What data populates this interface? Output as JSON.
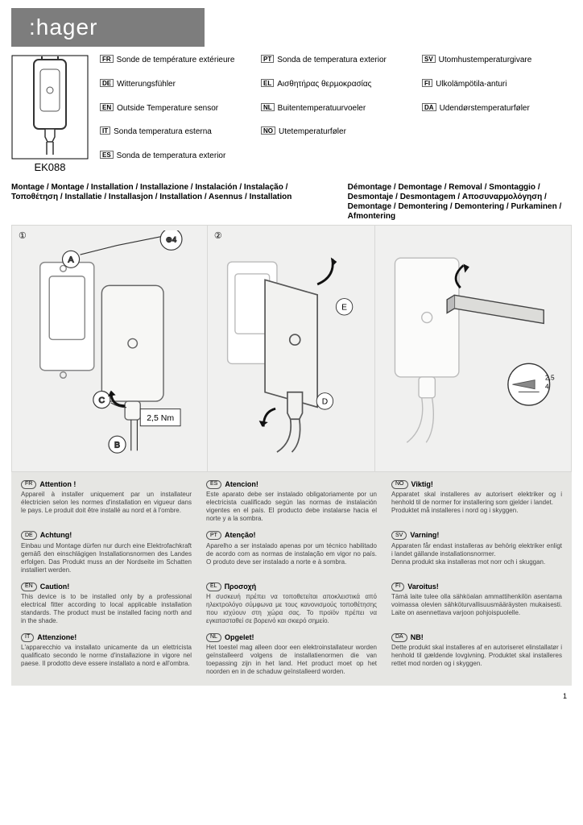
{
  "brand": ":hager",
  "product_code": "EK088",
  "product_names": {
    "fr": "Sonde de température extérieure",
    "de": "Witterungsfühler",
    "en": "Outside Temperature sensor",
    "it": "Sonda temperatura esterna",
    "es": "Sonda de temperatura exterior",
    "pt": "Sonda de temperatura exterior",
    "el": "Αισθητήρας θερµοκρασίας",
    "nl": "Buitentemperatuurvoeler",
    "no": "Utetemperaturføler",
    "sv": "Utomhustemperaturgivare",
    "fi": "Ulkolämpötila-anturi",
    "da": "Udendørstemperaturføler"
  },
  "sections": {
    "install_title_multi": "Montage / Montage / Installation / Installazione / Instalación / Instalação / Τοποθέτηση / Installatie / Installasjon / Installation / Asennus / Installation",
    "remove_title_multi": "Démontage / Demontage / Removal / Smontaggio / Desmontaje / Desmontagem / Αποσυναρµολόγηση / Demontage / Demontering / Demontering / Purkaminen / Afmontering"
  },
  "fig_labels": {
    "one": "①",
    "two": "②",
    "torque": "2,5 Nm",
    "screw_tip": "2,5\n4"
  },
  "warnings": [
    {
      "code": "FR",
      "title": "Attention !",
      "text": "Appareil à installer uniquement par un installateur électricien selon les normes d'installation en vigueur dans le pays. Le produit doit être installé au nord et à l'ombre."
    },
    {
      "code": "ES",
      "title": "Atencion!",
      "text": "Este aparato debe ser instalado obligatoriamente por un electricista cualificado según las normas de instalación vigentes en el país. El producto debe instalarse hacia el norte y a la sombra."
    },
    {
      "code": "NO",
      "title": "Viktig!",
      "text": "Apparatet skal installeres av autorisert elektriker og i henhold til de normer for installering som gjelder i landet.\nProduktet må installeres i nord og i skyggen."
    },
    {
      "code": "DE",
      "title": "Achtung!",
      "text": "Einbau und Montage dürfen nur durch eine Elektrofachkraft gemäß den einschlägigen Installationsnormen des Landes erfolgen. Das Produkt muss an der Nordseite im Schatten installiert werden."
    },
    {
      "code": "PT",
      "title": "Atenção!",
      "text": "Aparelho a ser instalado apenas por um técnico habilitado de acordo com as normas de instalação em vigor no país. O produto deve ser instalado a norte e à sombra."
    },
    {
      "code": "SV",
      "title": "Varning!",
      "text": "Apparaten får endast installeras av behörig elektriker enligt i landet gällande installationsnormer.\nDenna produkt ska installeras mot norr och i skuggan."
    },
    {
      "code": "EN",
      "title": "Caution!",
      "text": "This device is to be installed only by a professional electrical fitter according to local applicable installation standards. The product must be installed facing north and in the shade."
    },
    {
      "code": "EL",
      "title": "Προσοχή",
      "text": "Η συσκευή πρέπει να τοποθετείται αποκλειστικά από ηλεκτρολόγο σύμφωνα με τους κανονισμούς τοποθέτησης που ισχύουν στη χώρα σας. Το προϊόν πρέπει να εγκατασταθεί σε βορεινό και σκιερό σημείο."
    },
    {
      "code": "FI",
      "title": "Varoitus!",
      "text": "Tämä laite tulee olla sähköalan ammattihenkilön asentama voimassa olevien sähköturvallisuusmääräysten mukaisesti. Laite on asennettava varjoon pohjoispuolelle."
    },
    {
      "code": "IT",
      "title": "Attenzione!",
      "text": "L'apparecchio va installato unicamente da un elettricista qualificato secondo le norme d'installazione in vigore nel paese. Il prodotto deve essere installato a nord e all'ombra."
    },
    {
      "code": "NL",
      "title": "Opgelet!",
      "text": "Het toestel mag alleen door een elektroinstallateur worden geïnstalleerd volgens de installatienormen die van toepassing zijn in het land. Het product moet op het noorden en in de schaduw geïnstalleerd worden."
    },
    {
      "code": "DA",
      "title": "NB!",
      "text": "Dette produkt skal installeres af en autoriseret elinstallatør i henhold til gældende lovgivning. Produktet skal installeres rettet mod norden og i skyggen."
    }
  ],
  "page_number": "1",
  "colors": {
    "header_bg": "#7d7d7d",
    "panel_bg": "#f0f0ef",
    "warn_bg": "#e6e6e3"
  }
}
